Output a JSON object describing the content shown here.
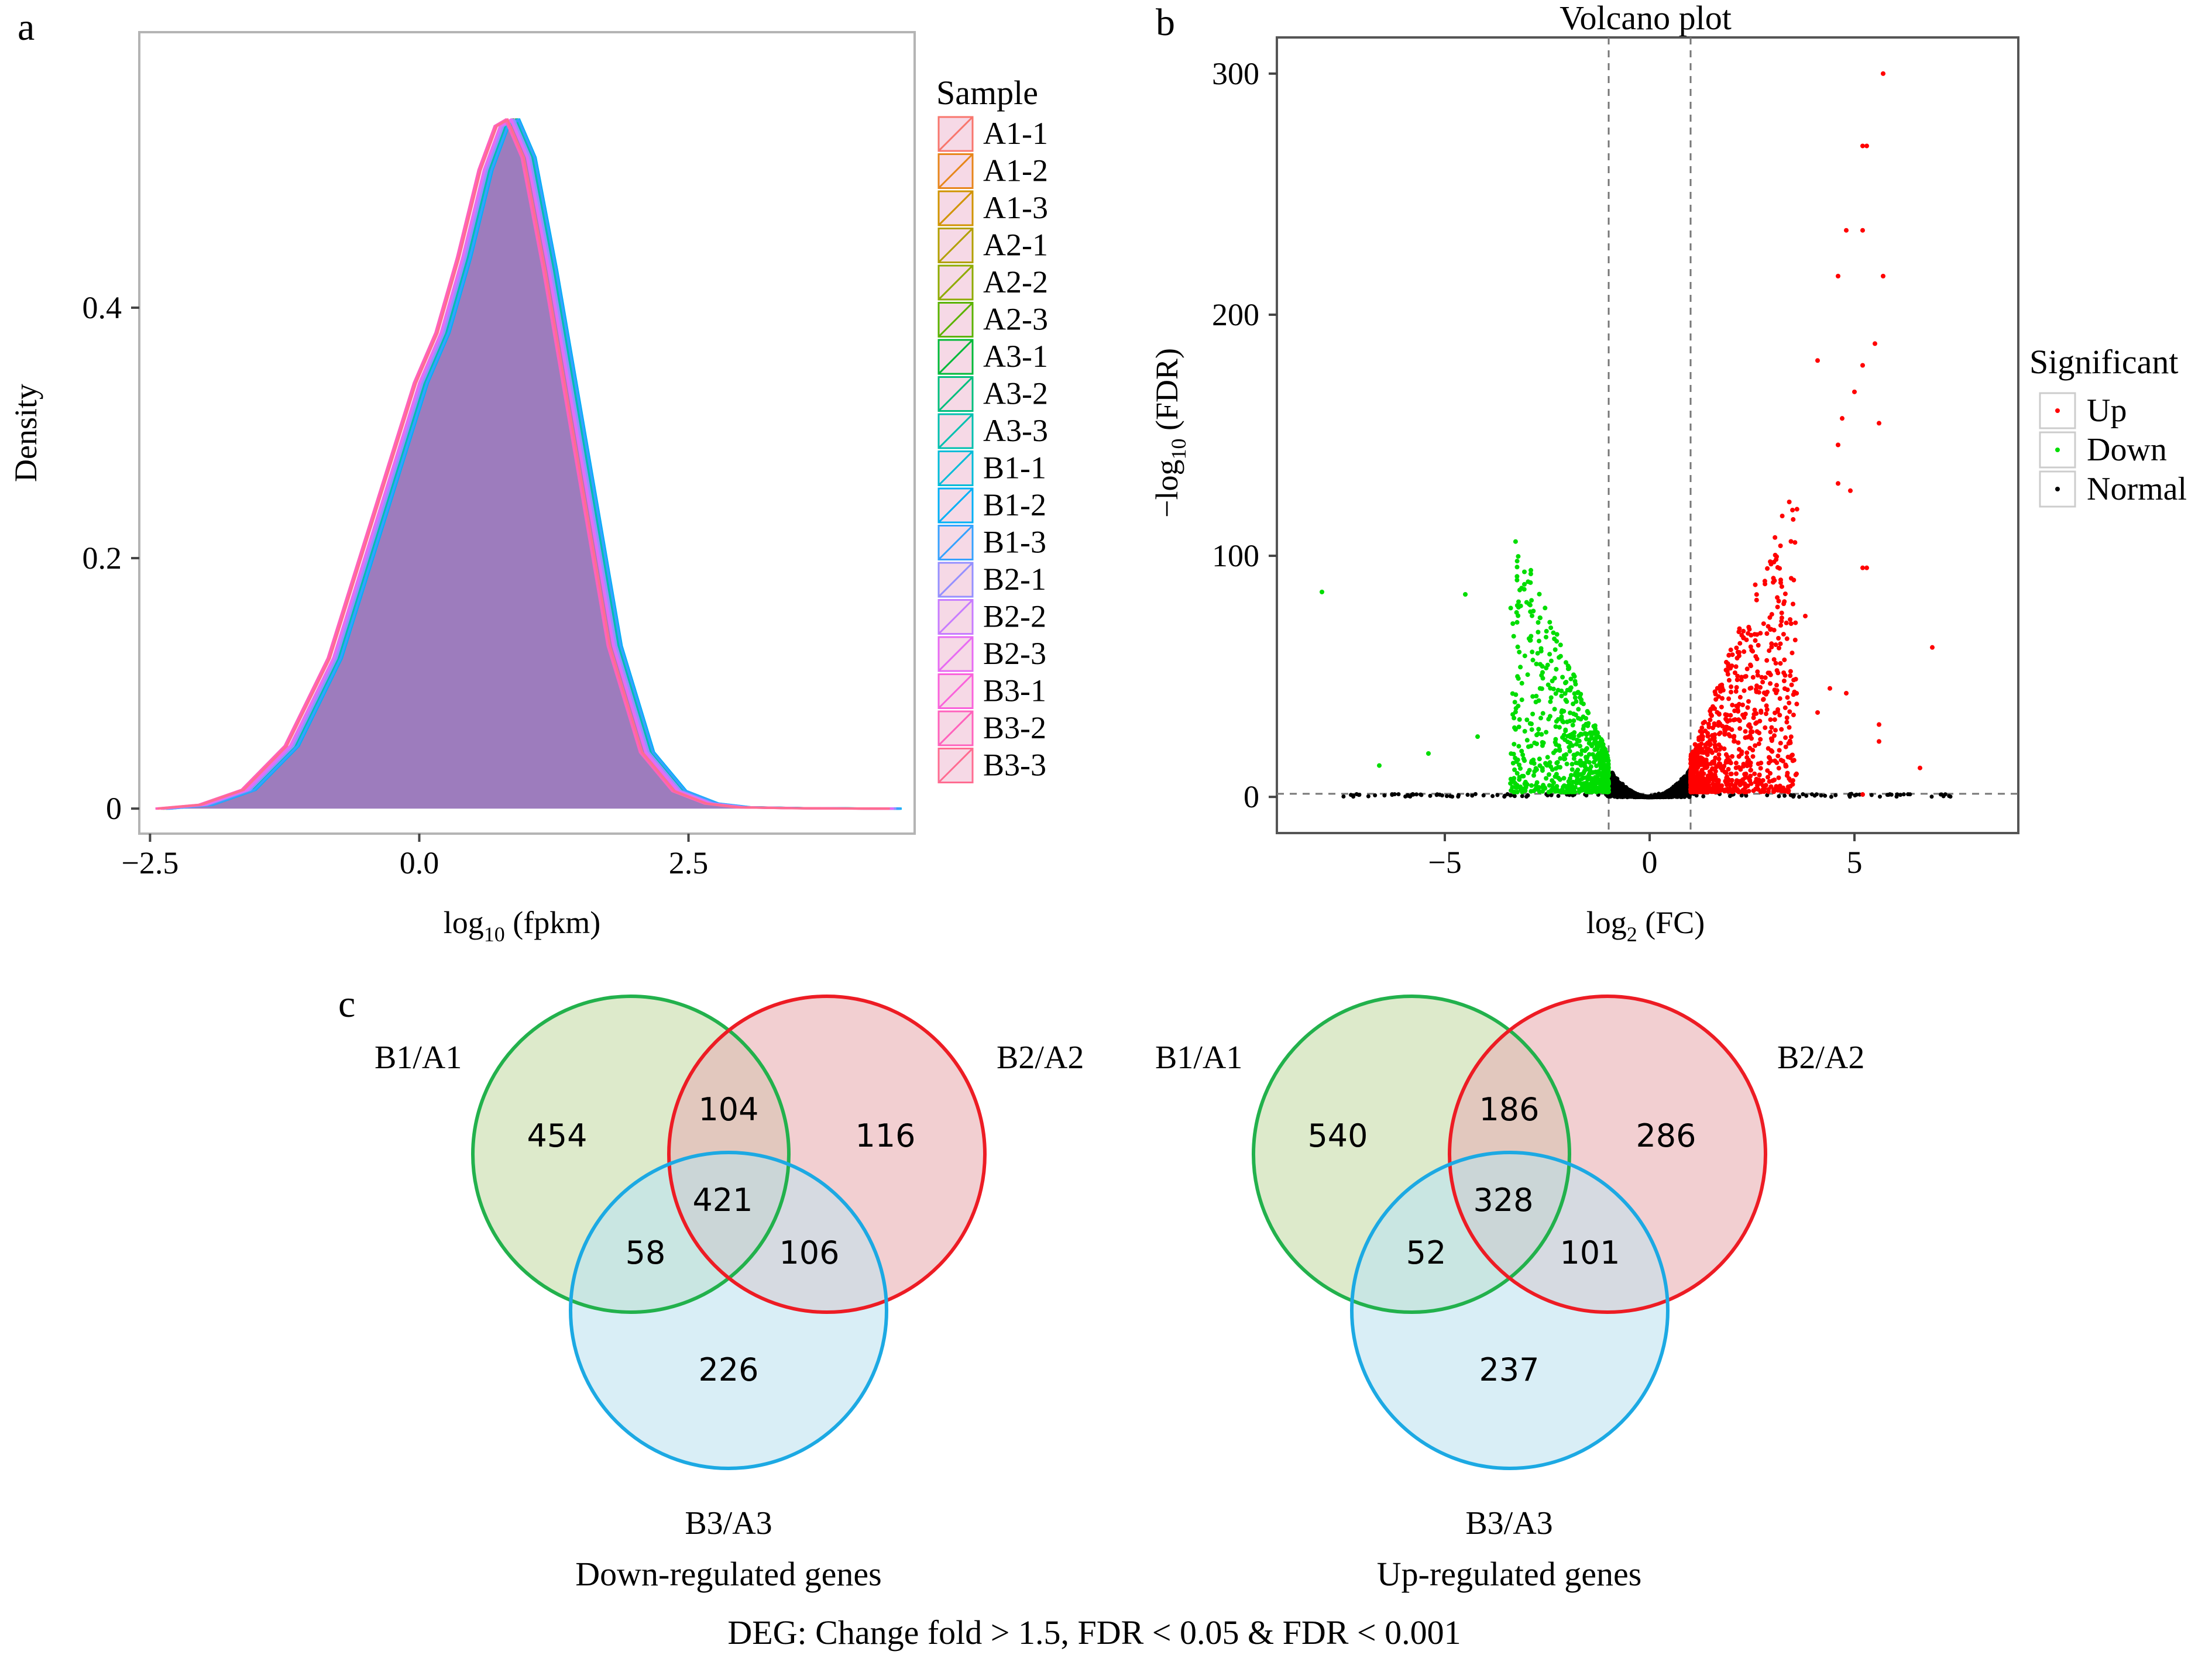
{
  "panel_labels": {
    "a": "a",
    "b": "b",
    "c": "c"
  },
  "caption": "DEG: Change fold > 1.5, FDR < 0.05 & FDR < 0.001",
  "chart_data": [
    {
      "id": "density",
      "type": "area",
      "title": "",
      "ylabel": "Density",
      "xlabel_main": "log",
      "xlabel_sub": "10",
      "xlabel_rest": " (fpkm)",
      "xlim": [
        -2.6,
        4.6
      ],
      "ylim": [
        -0.02,
        0.62
      ],
      "xticks": [
        -2.5,
        0.0,
        2.5
      ],
      "xtick_labels": [
        "−2.5",
        "0.0",
        "2.5"
      ],
      "yticks": [
        0,
        0.2,
        0.4
      ],
      "ytick_labels": [
        "0",
        "0.2",
        "0.4"
      ],
      "legend_title": "Sample",
      "legend_position": "right",
      "curve_x": [
        -2.4,
        -2.0,
        -1.6,
        -1.2,
        -0.8,
        -0.4,
        0.0,
        0.2,
        0.4,
        0.6,
        0.75,
        0.85,
        1.0,
        1.2,
        1.5,
        1.8,
        2.1,
        2.4,
        2.7,
        3.0,
        3.5,
        4.0,
        4.4
      ],
      "curve_y": [
        0.0,
        0.003,
        0.015,
        0.05,
        0.12,
        0.23,
        0.34,
        0.38,
        0.44,
        0.51,
        0.545,
        0.55,
        0.52,
        0.43,
        0.28,
        0.13,
        0.045,
        0.014,
        0.004,
        0.001,
        0.0003,
        0.0001,
        0.0
      ],
      "fill_color": "#9d7cbd",
      "series": [
        {
          "name": "A1-1",
          "color": "#F8766D",
          "dx": 0.0
        },
        {
          "name": "A1-2",
          "color": "#E7861B",
          "dx": 0.02
        },
        {
          "name": "A1-3",
          "color": "#D09400",
          "dx": 0.03
        },
        {
          "name": "A2-1",
          "color": "#B2A000",
          "dx": 0.01
        },
        {
          "name": "A2-2",
          "color": "#8EAB00",
          "dx": 0.04
        },
        {
          "name": "A2-3",
          "color": "#5BB300",
          "dx": 0.02
        },
        {
          "name": "A3-1",
          "color": "#00BA38",
          "dx": 0.05
        },
        {
          "name": "A3-2",
          "color": "#00BF7D",
          "dx": 0.06
        },
        {
          "name": "A3-3",
          "color": "#00C0AF",
          "dx": 0.05
        },
        {
          "name": "B1-1",
          "color": "#00BCD8",
          "dx": 0.07
        },
        {
          "name": "B1-2",
          "color": "#00B0F6",
          "dx": 0.08
        },
        {
          "name": "B1-3",
          "color": "#35A2FF",
          "dx": 0.07
        },
        {
          "name": "B2-1",
          "color": "#9590FF",
          "dx": 0.03
        },
        {
          "name": "B2-2",
          "color": "#C77CFF",
          "dx": 0.01
        },
        {
          "name": "B2-3",
          "color": "#E76BF3",
          "dx": 0.0
        },
        {
          "name": "B3-1",
          "color": "#FA62DB",
          "dx": -0.04
        },
        {
          "name": "B3-2",
          "color": "#FF62BC",
          "dx": -0.05
        },
        {
          "name": "B3-3",
          "color": "#FF6C91",
          "dx": -0.03
        }
      ]
    },
    {
      "id": "volcano",
      "type": "scatter",
      "title": "Volcano plot",
      "xlabel_main": "log",
      "xlabel_sub": "2",
      "xlabel_rest": " (FC)",
      "ylabel_main": "−log",
      "ylabel_sub": "10",
      "ylabel_rest": " (FDR)",
      "xlim": [
        -9.1,
        9.0
      ],
      "ylim": [
        -15,
        315
      ],
      "xticks": [
        -5,
        0,
        5
      ],
      "xtick_labels": [
        "−5",
        "0",
        "5"
      ],
      "yticks": [
        0,
        100,
        200,
        300
      ],
      "ytick_labels": [
        "0",
        "100",
        "200",
        "300"
      ],
      "threshold_x": [
        -1,
        1
      ],
      "threshold_y": 1.3,
      "legend_title": "Significant",
      "legend_position": "right",
      "series": [
        {
          "name": "Up",
          "color": "#ff0000"
        },
        {
          "name": "Down",
          "color": "#00dd00"
        },
        {
          "name": "Normal",
          "color": "#000000"
        }
      ],
      "up_points": [
        [
          5.7,
          300
        ],
        [
          5.2,
          270
        ],
        [
          5.3,
          270
        ],
        [
          4.8,
          235
        ],
        [
          5.2,
          235
        ],
        [
          4.6,
          216
        ],
        [
          5.7,
          216
        ],
        [
          5.5,
          188
        ],
        [
          4.1,
          181
        ],
        [
          5.2,
          179
        ],
        [
          5.0,
          168
        ],
        [
          4.7,
          157
        ],
        [
          5.6,
          155
        ],
        [
          4.6,
          146
        ],
        [
          4.6,
          130
        ],
        [
          4.9,
          127
        ],
        [
          5.2,
          95
        ],
        [
          5.3,
          95
        ],
        [
          4.8,
          43
        ],
        [
          5.6,
          30
        ],
        [
          5.6,
          23
        ],
        [
          6.9,
          62
        ],
        [
          6.6,
          12
        ],
        [
          5.2,
          1
        ],
        [
          3.5,
          80
        ],
        [
          3.2,
          90
        ],
        [
          3.8,
          75
        ],
        [
          4.4,
          45
        ],
        [
          4.1,
          35
        ]
      ],
      "down_points": [
        [
          -8.0,
          85
        ],
        [
          -4.5,
          84
        ],
        [
          -2.9,
          94
        ],
        [
          -6.6,
          13
        ],
        [
          -5.4,
          18
        ],
        [
          -4.2,
          25
        ]
      ]
    },
    {
      "id": "venn-down",
      "type": "venn",
      "title": "Down-regulated genes",
      "sets": [
        "B1/A1",
        "B2/A2",
        "B3/A3"
      ],
      "colors": [
        "#22b14c",
        "#ed1c24",
        "#1ca9e3"
      ],
      "fills": [
        "#e2e8c6",
        "#efcdd0",
        "#dceff6"
      ],
      "only": [
        454,
        116,
        226
      ],
      "ab": 104,
      "ac": 58,
      "bc": 106,
      "abc": 421
    },
    {
      "id": "venn-up",
      "type": "venn",
      "title": "Up-regulated genes",
      "sets": [
        "B1/A1",
        "B2/A2",
        "B3/A3"
      ],
      "colors": [
        "#22b14c",
        "#ed1c24",
        "#1ca9e3"
      ],
      "fills": [
        "#e2e8c6",
        "#efcdd0",
        "#dceff6"
      ],
      "only": [
        540,
        286,
        237
      ],
      "ab": 186,
      "ac": 52,
      "bc": 101,
      "abc": 328
    }
  ]
}
